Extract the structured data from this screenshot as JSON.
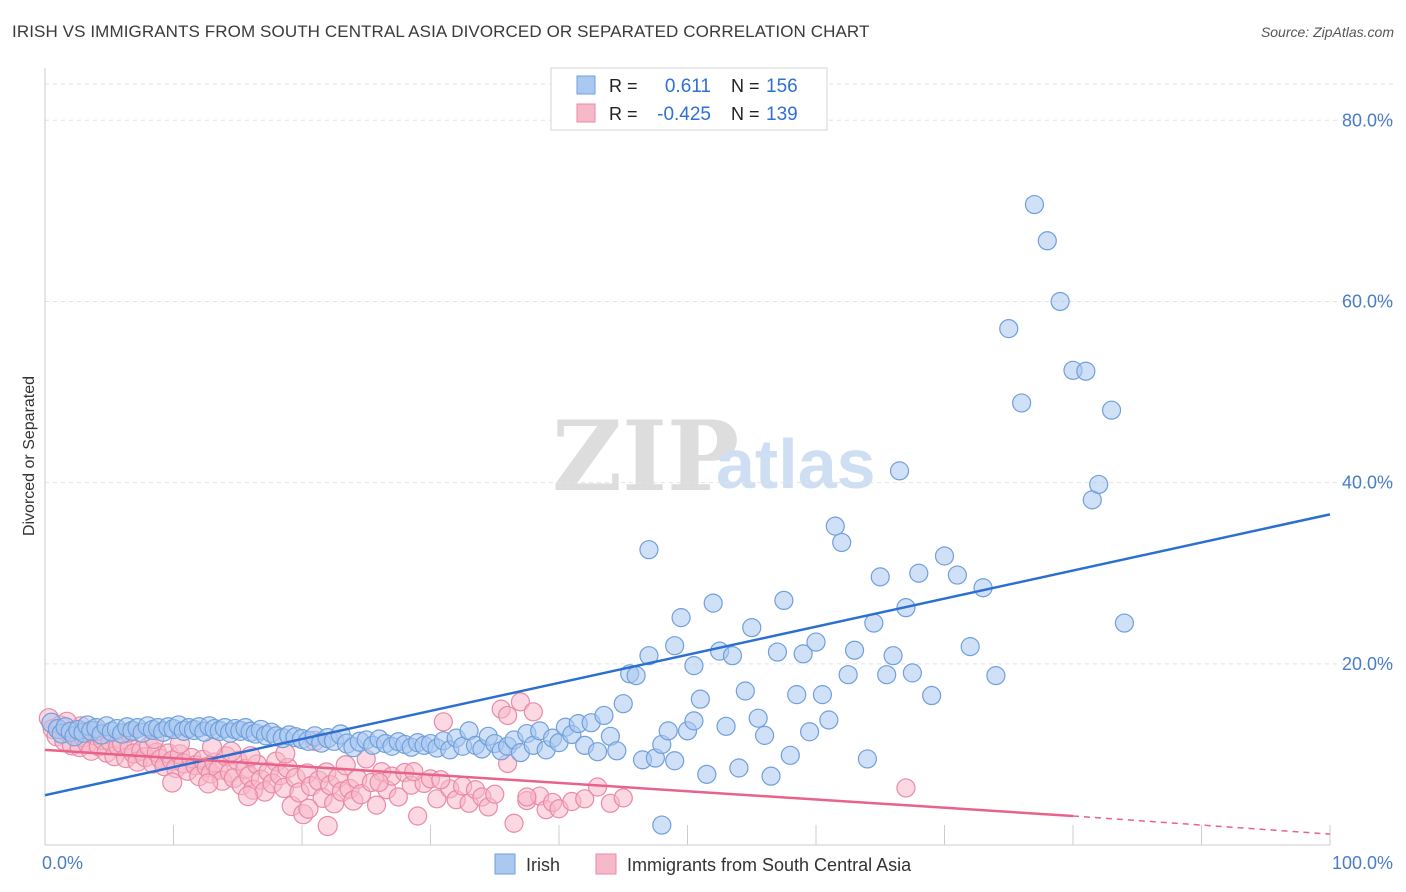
{
  "header": {
    "title": "IRISH VS IMMIGRANTS FROM SOUTH CENTRAL ASIA DIVORCED OR SEPARATED CORRELATION CHART",
    "source": "Source: ZipAtlas.com"
  },
  "watermark": {
    "zip": "ZIP",
    "atlas": "atlas"
  },
  "colors": {
    "irish_fill": "#aac8f0",
    "irish_stroke": "#6f9fdc",
    "irish_line": "#2b6fd0",
    "asia_fill": "#f7b8ca",
    "asia_stroke": "#e98aa6",
    "asia_line": "#e8628a",
    "tick_text": "#4a7cc7",
    "grid": "#e2e2e2"
  },
  "stats": {
    "irish": {
      "r_label": "R =",
      "r_value": "0.611",
      "n_label": "N =",
      "n_value": "156"
    },
    "asia": {
      "r_label": "R =",
      "r_value": "-0.425",
      "n_label": "N =",
      "n_value": "139"
    }
  },
  "chart_data": {
    "type": "scatter",
    "title": "IRISH VS IMMIGRANTS FROM SOUTH CENTRAL ASIA DIVORCED OR SEPARATED CORRELATION CHART",
    "xlabel": "",
    "ylabel": "Divorced or Separated",
    "xlim": [
      0,
      100
    ],
    "ylim": [
      0,
      85
    ],
    "x_tick_labels": [
      "0.0%",
      "100.0%"
    ],
    "y_ticks": [
      20,
      40,
      60,
      80
    ],
    "y_tick_labels": [
      "20.0%",
      "40.0%",
      "60.0%",
      "80.0%"
    ],
    "grid": true,
    "legend_position": "top-center",
    "series": [
      {
        "name": "Irish",
        "trend": {
          "x": [
            0,
            100
          ],
          "y": [
            5.5,
            36.5
          ]
        },
        "points": [
          [
            0.5,
            13.5
          ],
          [
            1,
            12.8
          ],
          [
            1.3,
            12.3
          ],
          [
            1.6,
            13.0
          ],
          [
            2,
            12.5
          ],
          [
            2.3,
            12.0
          ],
          [
            2.6,
            12.7
          ],
          [
            3,
            12.4
          ],
          [
            3.3,
            13.2
          ],
          [
            3.6,
            12.6
          ],
          [
            4,
            12.9
          ],
          [
            4.4,
            12.2
          ],
          [
            4.8,
            13.1
          ],
          [
            5.2,
            12.5
          ],
          [
            5.6,
            12.8
          ],
          [
            6,
            12.3
          ],
          [
            6.4,
            13.0
          ],
          [
            6.8,
            12.6
          ],
          [
            7.2,
            12.9
          ],
          [
            7.6,
            12.4
          ],
          [
            8,
            13.1
          ],
          [
            8.4,
            12.7
          ],
          [
            8.8,
            12.9
          ],
          [
            9.2,
            12.5
          ],
          [
            9.6,
            13.0
          ],
          [
            10,
            12.8
          ],
          [
            10.4,
            13.2
          ],
          [
            10.8,
            12.6
          ],
          [
            11.2,
            12.9
          ],
          [
            11.6,
            12.7
          ],
          [
            12,
            13.0
          ],
          [
            12.4,
            12.5
          ],
          [
            12.8,
            13.1
          ],
          [
            13.2,
            12.8
          ],
          [
            13.6,
            12.6
          ],
          [
            14,
            12.9
          ],
          [
            14.4,
            12.4
          ],
          [
            14.8,
            12.8
          ],
          [
            15.2,
            12.6
          ],
          [
            15.6,
            12.9
          ],
          [
            16,
            12.5
          ],
          [
            16.4,
            12.3
          ],
          [
            16.8,
            12.7
          ],
          [
            17.2,
            12.1
          ],
          [
            17.6,
            12.4
          ],
          [
            18,
            12.0
          ],
          [
            18.5,
            11.8
          ],
          [
            19,
            12.1
          ],
          [
            19.5,
            11.9
          ],
          [
            20,
            11.7
          ],
          [
            20.5,
            11.5
          ],
          [
            21,
            12.0
          ],
          [
            21.5,
            11.3
          ],
          [
            22,
            11.8
          ],
          [
            22.5,
            11.5
          ],
          [
            23,
            12.2
          ],
          [
            23.5,
            11.2
          ],
          [
            24,
            10.8
          ],
          [
            24.5,
            11.4
          ],
          [
            25,
            11.6
          ],
          [
            25.5,
            11.0
          ],
          [
            26,
            11.7
          ],
          [
            26.5,
            11.2
          ],
          [
            27,
            10.9
          ],
          [
            27.5,
            11.4
          ],
          [
            28,
            11.1
          ],
          [
            28.5,
            10.8
          ],
          [
            29,
            11.3
          ],
          [
            29.5,
            11.0
          ],
          [
            30,
            11.2
          ],
          [
            30.5,
            10.7
          ],
          [
            31,
            11.5
          ],
          [
            31.5,
            10.5
          ],
          [
            32,
            11.8
          ],
          [
            32.5,
            10.9
          ],
          [
            33,
            12.6
          ],
          [
            33.5,
            11.0
          ],
          [
            34,
            10.6
          ],
          [
            34.5,
            12.0
          ],
          [
            35,
            11.2
          ],
          [
            35.5,
            10.4
          ],
          [
            36,
            10.9
          ],
          [
            36.5,
            11.6
          ],
          [
            37,
            10.2
          ],
          [
            37.5,
            12.3
          ],
          [
            38,
            11.0
          ],
          [
            38.5,
            12.6
          ],
          [
            39,
            10.5
          ],
          [
            39.5,
            11.8
          ],
          [
            40,
            11.3
          ],
          [
            40.5,
            13.0
          ],
          [
            41,
            12.2
          ],
          [
            41.5,
            13.4
          ],
          [
            42,
            11.0
          ],
          [
            42.5,
            13.5
          ],
          [
            43,
            10.3
          ],
          [
            43.5,
            14.3
          ],
          [
            44,
            12.0
          ],
          [
            44.5,
            10.4
          ],
          [
            45,
            15.6
          ],
          [
            45.5,
            18.9
          ],
          [
            46,
            18.7
          ],
          [
            46.5,
            9.4
          ],
          [
            47,
            20.9
          ],
          [
            47.5,
            9.6
          ],
          [
            48,
            11.1
          ],
          [
            48.5,
            12.6
          ],
          [
            49,
            9.3
          ],
          [
            49.5,
            25.1
          ],
          [
            50,
            12.6
          ],
          [
            50.5,
            13.7
          ],
          [
            51,
            16.1
          ],
          [
            51.5,
            7.8
          ],
          [
            52,
            26.7
          ],
          [
            52.5,
            21.4
          ],
          [
            53,
            13.1
          ],
          [
            53.5,
            20.9
          ],
          [
            54,
            8.5
          ],
          [
            54.5,
            17.0
          ],
          [
            55,
            24.0
          ],
          [
            55.5,
            14.0
          ],
          [
            56,
            12.1
          ],
          [
            56.5,
            7.6
          ],
          [
            57,
            21.3
          ],
          [
            57.5,
            27.0
          ],
          [
            58,
            9.9
          ],
          [
            58.5,
            16.6
          ],
          [
            59,
            21.1
          ],
          [
            59.5,
            12.5
          ],
          [
            60,
            22.4
          ],
          [
            60.5,
            16.6
          ],
          [
            61,
            13.8
          ],
          [
            61.5,
            35.2
          ],
          [
            62,
            33.4
          ],
          [
            62.5,
            18.8
          ],
          [
            63,
            21.5
          ],
          [
            64,
            9.5
          ],
          [
            64.5,
            24.5
          ],
          [
            65,
            29.6
          ],
          [
            65.5,
            18.8
          ],
          [
            66,
            20.9
          ],
          [
            66.5,
            41.3
          ],
          [
            67,
            26.2
          ],
          [
            67.5,
            19.0
          ],
          [
            68,
            30.0
          ],
          [
            69,
            16.5
          ],
          [
            70,
            31.9
          ],
          [
            71,
            29.8
          ],
          [
            72,
            21.9
          ],
          [
            73,
            28.4
          ],
          [
            74,
            18.7
          ],
          [
            75,
            57.0
          ],
          [
            76,
            48.8
          ],
          [
            81.5,
            38.1
          ],
          [
            84,
            24.5
          ],
          [
            77,
            70.7
          ],
          [
            78,
            66.7
          ],
          [
            79,
            60.0
          ],
          [
            80,
            52.4
          ],
          [
            81,
            52.3
          ],
          [
            82,
            39.8
          ],
          [
            83,
            48.0
          ],
          [
            48,
            2.2
          ],
          [
            47,
            32.6
          ],
          [
            50.5,
            19.8
          ],
          [
            49,
            22.0
          ]
        ]
      },
      {
        "name": "Immigrants from South Central Asia",
        "trend_solid": {
          "x": [
            0,
            80
          ],
          "y": [
            10.5,
            3.2
          ]
        },
        "trend_dashed": {
          "x": [
            80,
            100
          ],
          "y": [
            3.2,
            1.2
          ]
        },
        "points": [
          [
            0.3,
            14.0
          ],
          [
            0.6,
            12.8
          ],
          [
            0.9,
            12.0
          ],
          [
            1.2,
            13.2
          ],
          [
            1.5,
            11.5
          ],
          [
            1.8,
            12.4
          ],
          [
            2.1,
            11.0
          ],
          [
            2.4,
            12.7
          ],
          [
            2.7,
            10.8
          ],
          [
            3,
            11.9
          ],
          [
            3.3,
            11.2
          ],
          [
            3.6,
            10.4
          ],
          [
            3.9,
            12.1
          ],
          [
            4.2,
            10.9
          ],
          [
            4.5,
            11.6
          ],
          [
            4.8,
            10.2
          ],
          [
            5.1,
            11.4
          ],
          [
            5.4,
            9.8
          ],
          [
            5.7,
            10.9
          ],
          [
            6,
            11.2
          ],
          [
            6.3,
            9.6
          ],
          [
            6.6,
            10.7
          ],
          [
            6.9,
            10.1
          ],
          [
            7.2,
            9.2
          ],
          [
            7.5,
            10.4
          ],
          [
            7.8,
            9.7
          ],
          [
            8.1,
            10.9
          ],
          [
            8.4,
            9.0
          ],
          [
            8.7,
            10.2
          ],
          [
            9,
            9.5
          ],
          [
            9.3,
            8.7
          ],
          [
            9.6,
            10.1
          ],
          [
            9.9,
            9.3
          ],
          [
            10.2,
            8.5
          ],
          [
            10.5,
            10.0
          ],
          [
            10.8,
            9.0
          ],
          [
            11.1,
            8.2
          ],
          [
            11.4,
            9.6
          ],
          [
            11.7,
            8.8
          ],
          [
            12,
            7.6
          ],
          [
            12.3,
            9.4
          ],
          [
            12.6,
            8.6
          ],
          [
            12.9,
            7.9
          ],
          [
            13.2,
            9.1
          ],
          [
            13.5,
            8.3
          ],
          [
            13.8,
            7.1
          ],
          [
            14.1,
            9.8
          ],
          [
            14.4,
            8.0
          ],
          [
            14.7,
            7.4
          ],
          [
            15,
            9.3
          ],
          [
            15.3,
            6.6
          ],
          [
            15.6,
            8.4
          ],
          [
            15.9,
            7.6
          ],
          [
            16.2,
            6.1
          ],
          [
            16.5,
            8.9
          ],
          [
            16.8,
            7.2
          ],
          [
            17.1,
            5.9
          ],
          [
            17.4,
            8.1
          ],
          [
            17.7,
            6.8
          ],
          [
            18,
            9.2
          ],
          [
            18.3,
            7.7
          ],
          [
            18.6,
            6.3
          ],
          [
            18.9,
            8.5
          ],
          [
            19.2,
            4.3
          ],
          [
            19.5,
            7.4
          ],
          [
            19.8,
            5.8
          ],
          [
            20.1,
            3.4
          ],
          [
            20.4,
            7.9
          ],
          [
            20.7,
            6.5
          ],
          [
            21,
            11.5
          ],
          [
            21.3,
            7.1
          ],
          [
            21.6,
            5.2
          ],
          [
            21.9,
            8.0
          ],
          [
            22.2,
            6.6
          ],
          [
            22.5,
            4.6
          ],
          [
            22.8,
            7.4
          ],
          [
            23.1,
            5.9
          ],
          [
            23.4,
            8.8
          ],
          [
            23.7,
            6.2
          ],
          [
            24,
            4.9
          ],
          [
            24.3,
            7.3
          ],
          [
            24.6,
            5.6
          ],
          [
            25,
            9.5
          ],
          [
            25.4,
            6.9
          ],
          [
            25.8,
            4.4
          ],
          [
            26.2,
            8.1
          ],
          [
            26.6,
            6.1
          ],
          [
            27,
            7.6
          ],
          [
            27.5,
            5.3
          ],
          [
            28,
            8.0
          ],
          [
            28.5,
            6.6
          ],
          [
            29,
            3.2
          ],
          [
            29.5,
            6.8
          ],
          [
            30,
            7.3
          ],
          [
            30.5,
            5.1
          ],
          [
            31,
            13.6
          ],
          [
            31.5,
            6.2
          ],
          [
            32,
            5.0
          ],
          [
            32.5,
            6.5
          ],
          [
            33,
            4.6
          ],
          [
            33.5,
            6.1
          ],
          [
            34,
            5.3
          ],
          [
            34.5,
            4.2
          ],
          [
            35,
            5.6
          ],
          [
            35.5,
            15.0
          ],
          [
            36,
            14.3
          ],
          [
            36.5,
            2.4
          ],
          [
            37,
            15.8
          ],
          [
            37.5,
            4.9
          ],
          [
            38,
            14.7
          ],
          [
            38.5,
            5.4
          ],
          [
            39,
            3.9
          ],
          [
            39.5,
            4.7
          ],
          [
            40,
            4.0
          ],
          [
            41,
            4.8
          ],
          [
            42,
            5.1
          ],
          [
            43,
            6.4
          ],
          [
            44,
            4.6
          ],
          [
            45,
            5.2
          ],
          [
            22,
            2.1
          ],
          [
            20.5,
            4.0
          ],
          [
            14.5,
            10.3
          ],
          [
            10.5,
            11.2
          ],
          [
            8.5,
            11.7
          ],
          [
            6.5,
            12.4
          ],
          [
            4,
            12.6
          ],
          [
            2.8,
            13.1
          ],
          [
            1.7,
            13.6
          ],
          [
            13,
            10.8
          ],
          [
            16,
            9.8
          ],
          [
            26,
            6.9
          ],
          [
            36,
            9.0
          ],
          [
            37.5,
            5.3
          ],
          [
            28.7,
            8.1
          ],
          [
            30.8,
            7.2
          ],
          [
            18.7,
            10.1
          ],
          [
            12.7,
            6.8
          ],
          [
            9.9,
            6.9
          ],
          [
            15.8,
            5.4
          ],
          [
            67,
            6.3
          ]
        ]
      }
    ]
  }
}
